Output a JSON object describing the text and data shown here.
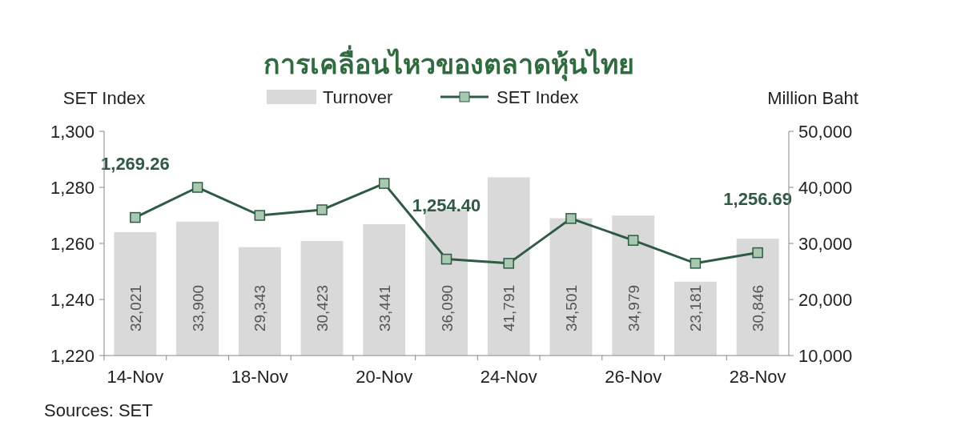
{
  "chart_data": {
    "type": "bar",
    "title": "การเคลื่อนไหวของตลาดหุ้นไทย",
    "ylabel": "SET Index",
    "y2label": "Million Baht",
    "categories": [
      "14-Nov",
      null,
      "18-Nov",
      null,
      "20-Nov",
      null,
      "24-Nov",
      null,
      "26-Nov",
      null,
      "28-Nov"
    ],
    "series": [
      {
        "name": "Turnover",
        "axis": "y2",
        "color": "#d9d9d9",
        "values": [
          32021,
          33900,
          29343,
          30423,
          33441,
          36090,
          41791,
          34501,
          34979,
          23181,
          30846
        ],
        "value_labels": [
          "32,021",
          "33,900",
          "29,343",
          "30,423",
          "33,441",
          "36,090",
          "41,791",
          "34,501",
          "34,979",
          "23,181",
          "30,846"
        ]
      },
      {
        "name": "SET Index",
        "type": "line",
        "color": "#2f5a44",
        "marker": "square",
        "values": [
          1269.26,
          1280,
          1270,
          1272,
          1281.4,
          1254.4,
          1252.9,
          1268.9,
          1261.1,
          1252.9,
          1256.69
        ],
        "value_labels": [
          "1,269.26",
          null,
          null,
          null,
          null,
          "1,254.40",
          null,
          null,
          null,
          null,
          "1,256.69"
        ]
      }
    ],
    "ylim": [
      1220,
      1300
    ],
    "yticks": [
      {
        "value": 1220,
        "label": "1,220"
      },
      {
        "value": 1240,
        "label": "1,240"
      },
      {
        "value": 1260,
        "label": "1,260"
      },
      {
        "value": 1280,
        "label": "1,280"
      },
      {
        "value": 1300,
        "label": "1,300"
      }
    ],
    "y2lim": [
      10000,
      50000
    ],
    "y2ticks": [
      {
        "value": 10000,
        "label": "10,000"
      },
      {
        "value": 20000,
        "label": "20,000"
      },
      {
        "value": 30000,
        "label": "30,000"
      },
      {
        "value": 40000,
        "label": "40,000"
      },
      {
        "value": 50000,
        "label": "50,000"
      }
    ],
    "legend": "top",
    "annotations": [
      "Sources: SET"
    ]
  }
}
